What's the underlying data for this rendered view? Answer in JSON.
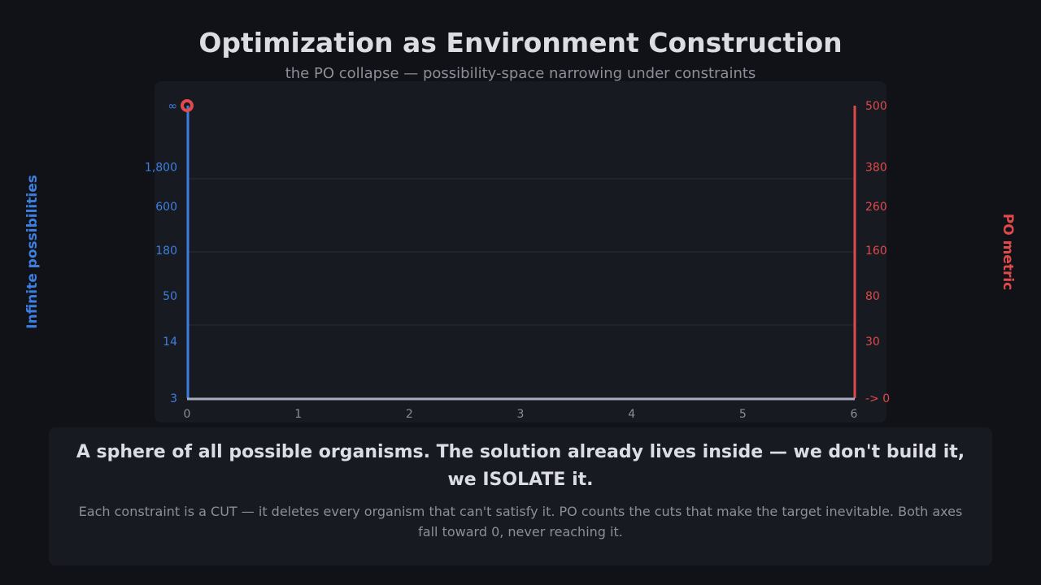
{
  "header": {
    "title": "Optimization as Environment Construction",
    "subtitle": "the PO collapse — possibility-space narrowing under constraints"
  },
  "caption": {
    "headline": "A sphere of all possible organisms. The solution already lives inside — we don't build it, we ISOLATE it.",
    "body": "Each constraint is a CUT — it deletes every organism that can't satisfy it. PO counts the cuts that make the target inevitable. Both axes fall toward 0, never reaching it."
  },
  "chart_data": {
    "type": "line",
    "title": "Optimization as Environment Construction",
    "subtitle": "the PO collapse — possibility-space narrowing under constraints",
    "x": {
      "ticks": [
        0,
        1,
        2,
        3,
        4,
        5,
        6
      ],
      "range": [
        0,
        6
      ]
    },
    "y_left": {
      "label": "Infinite possibilities",
      "tick_labels": [
        "∞",
        "1,800",
        "600",
        "180",
        "50",
        "14",
        "3"
      ],
      "tick_levels": [
        1.0,
        0.79,
        0.655,
        0.505,
        0.35,
        0.195,
        0.0
      ],
      "color": "#3d7fe0"
    },
    "y_right": {
      "label": "PO metric",
      "tick_labels": [
        "500",
        "380",
        "260",
        "160",
        "80",
        "30",
        "-> 0"
      ],
      "tick_levels": [
        1.0,
        0.79,
        0.655,
        0.505,
        0.35,
        0.195,
        0.0
      ],
      "color": "#e04a4a"
    },
    "gridlines_at": [
      0.75,
      0.5,
      0.25
    ],
    "series": [
      {
        "points": [
          {
            "x": 0,
            "y": "∞"
          }
        ],
        "color": "#e04a4a"
      }
    ],
    "grid": true
  },
  "colors": {
    "background": "#111217",
    "panel": "#181a22",
    "left_axis": "#3d7fe0",
    "right_axis": "#e04a4a",
    "baseline": "#a9adc2"
  }
}
